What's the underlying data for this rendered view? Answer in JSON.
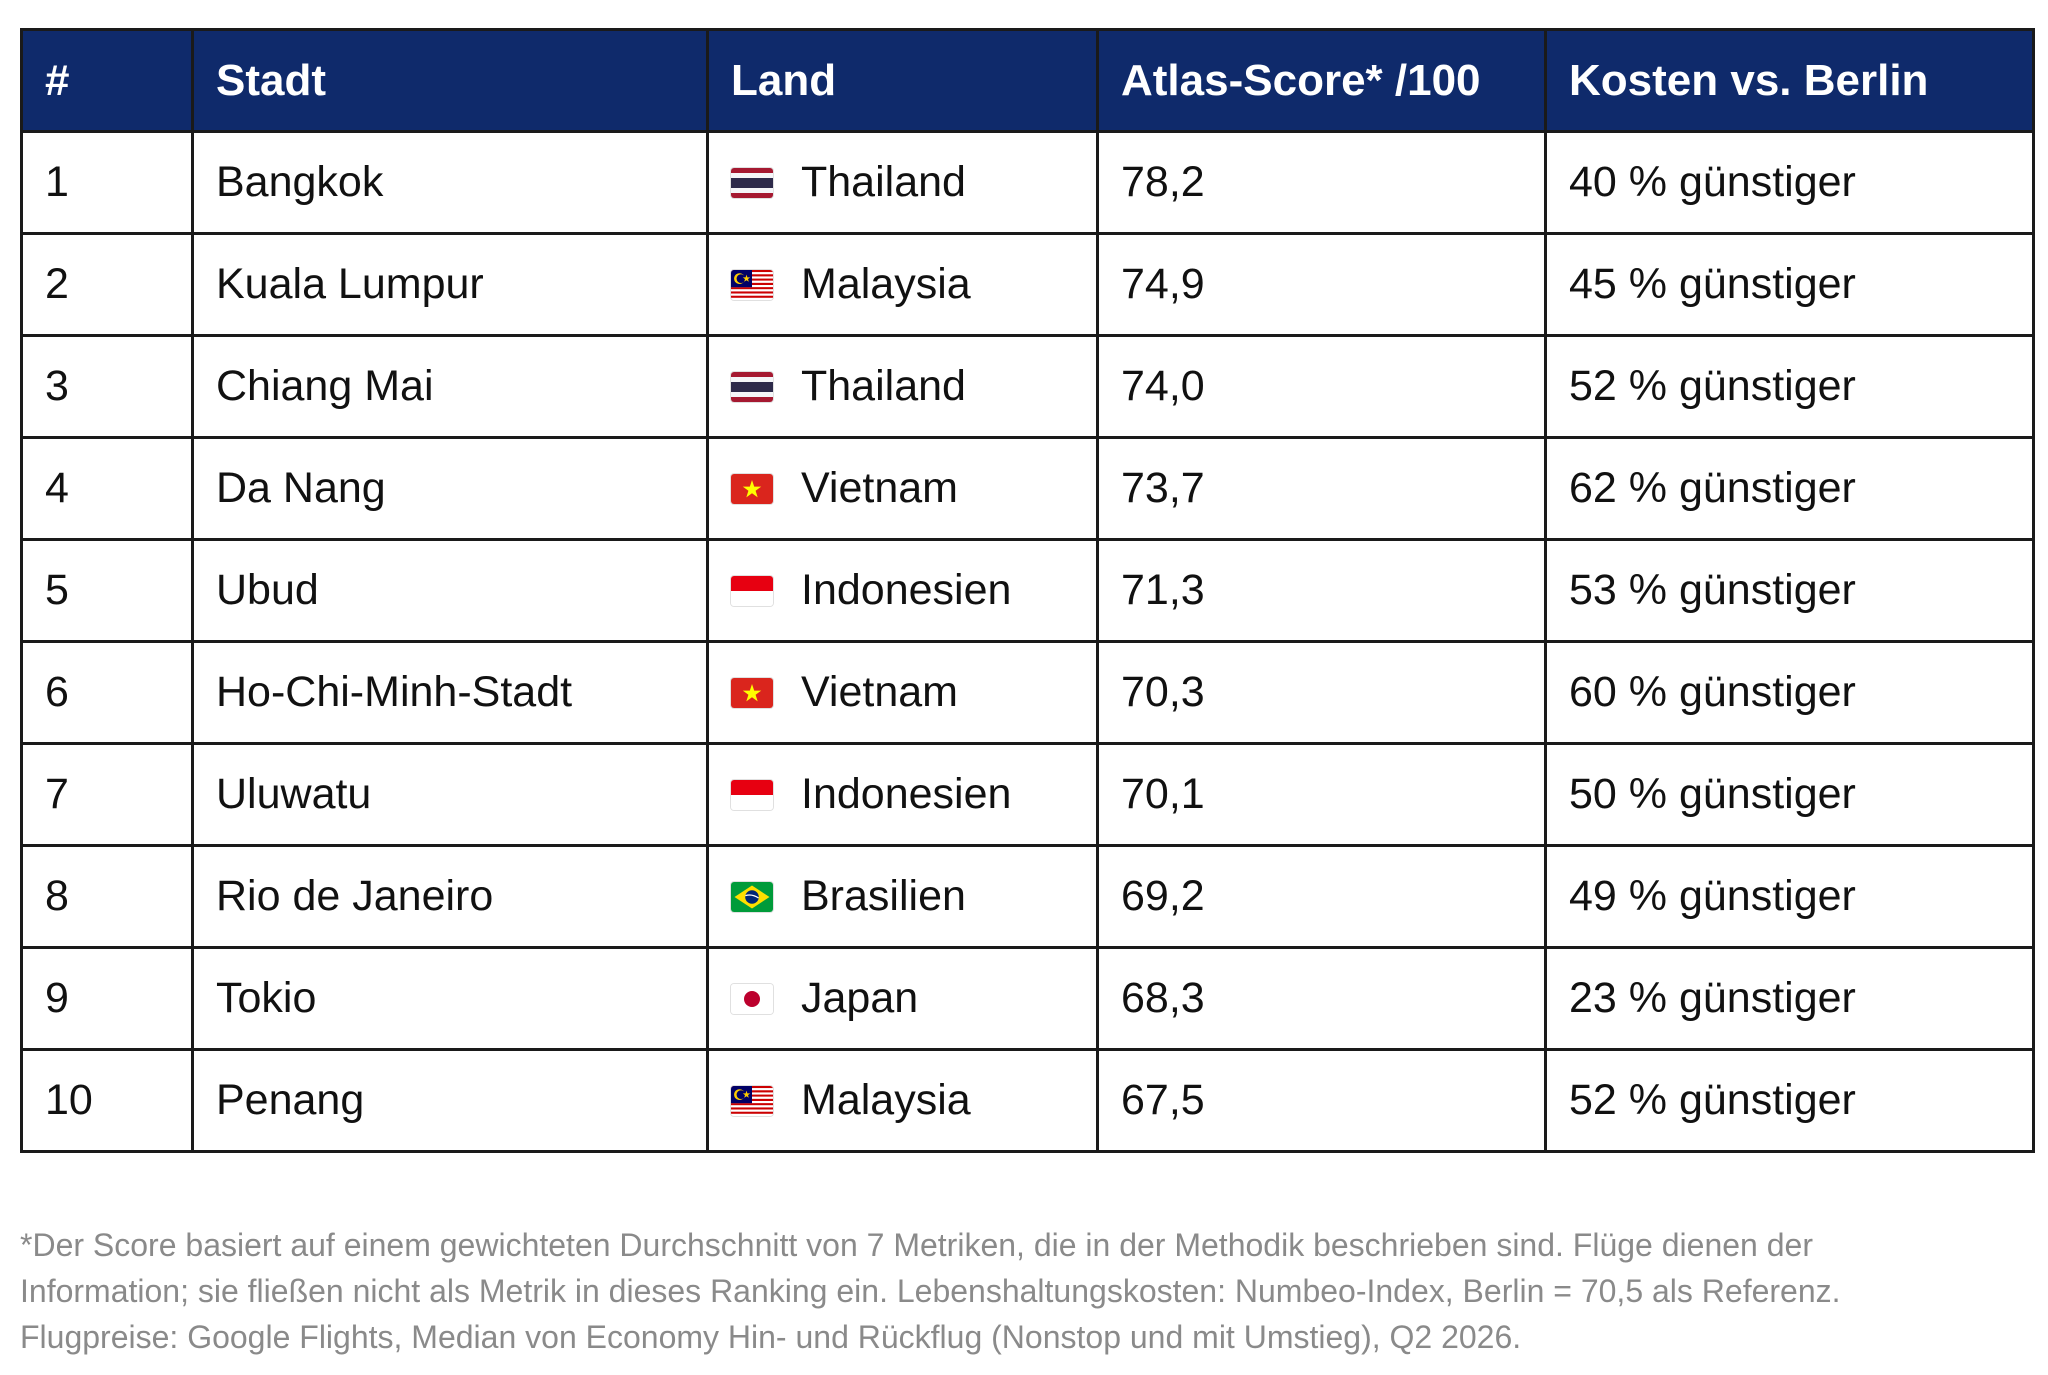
{
  "table": {
    "headers": [
      "#",
      "Stadt",
      "Land",
      "Atlas-Score* /100",
      "Kosten vs. Berlin"
    ],
    "rows": [
      {
        "rank": "1",
        "city": "Bangkok",
        "flag": "thailand-flag-icon",
        "country": "Thailand",
        "score": "78,2",
        "cost": "40 % günstiger"
      },
      {
        "rank": "2",
        "city": "Kuala Lumpur",
        "flag": "malaysia-flag-icon",
        "country": "Malaysia",
        "score": "74,9",
        "cost": "45 % günstiger"
      },
      {
        "rank": "3",
        "city": "Chiang Mai",
        "flag": "thailand-flag-icon",
        "country": "Thailand",
        "score": "74,0",
        "cost": "52 % günstiger"
      },
      {
        "rank": "4",
        "city": "Da Nang",
        "flag": "vietnam-flag-icon",
        "country": "Vietnam",
        "score": "73,7",
        "cost": "62 % günstiger"
      },
      {
        "rank": "5",
        "city": "Ubud",
        "flag": "indonesia-flag-icon",
        "country": "Indonesien",
        "score": "71,3",
        "cost": "53 % günstiger"
      },
      {
        "rank": "6",
        "city": "Ho-Chi-Minh-Stadt",
        "flag": "vietnam-flag-icon",
        "country": "Vietnam",
        "score": "70,3",
        "cost": "60 % günstiger"
      },
      {
        "rank": "7",
        "city": "Uluwatu",
        "flag": "indonesia-flag-icon",
        "country": "Indonesien",
        "score": "70,1",
        "cost": "50 % günstiger"
      },
      {
        "rank": "8",
        "city": "Rio de Janeiro",
        "flag": "brazil-flag-icon",
        "country": "Brasilien",
        "score": "69,2",
        "cost": "49 % günstiger"
      },
      {
        "rank": "9",
        "city": "Tokio",
        "flag": "japan-flag-icon",
        "country": "Japan",
        "score": "68,3",
        "cost": "23 % günstiger"
      },
      {
        "rank": "10",
        "city": "Penang",
        "flag": "malaysia-flag-icon",
        "country": "Malaysia",
        "score": "67,5",
        "cost": "52 % günstiger"
      }
    ]
  },
  "footnote": {
    "line1": "*Der Score basiert auf einem gewichteten Durchschnitt von 7 Metriken, die in der Methodik beschrieben sind. Flüge dienen der",
    "line2": "Information; sie fließen nicht als Metrik in dieses Ranking ein. Lebenshaltungskosten: Numbeo-Index, Berlin = 70,5 als Referenz.",
    "line3": "Flugpreise: Google Flights, Median von Economy Hin- und Rückflug (Nonstop und mit Umstieg), Q2 2026."
  },
  "colors": {
    "header_bg": "#0f2a6b",
    "header_text": "#ffffff",
    "border": "#1a1a1a",
    "footnote_text": "#8a8a8a"
  }
}
